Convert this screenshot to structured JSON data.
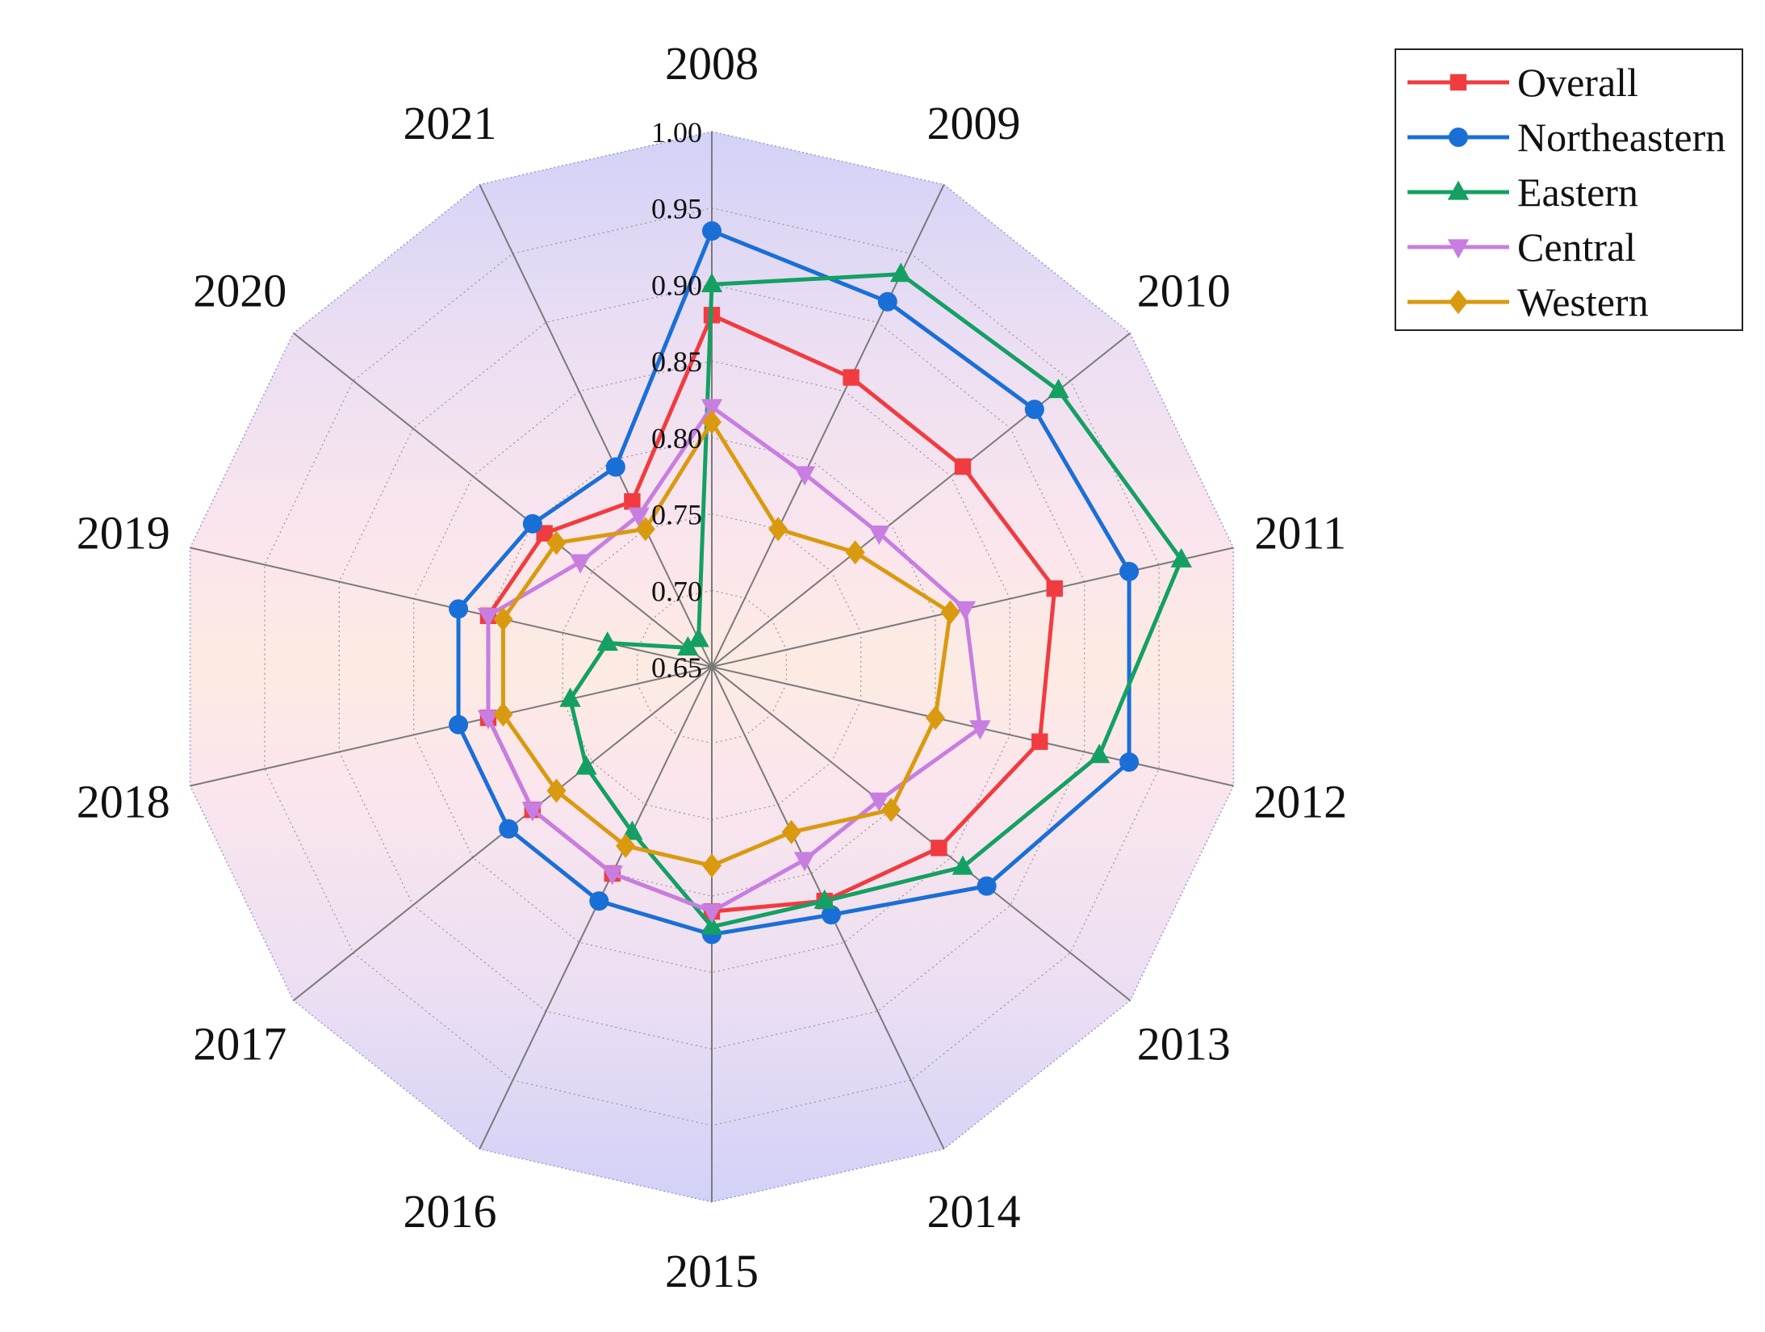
{
  "chart_data": {
    "type": "radar",
    "categories": [
      "2008",
      "2009",
      "2010",
      "2011",
      "2012",
      "2013",
      "2014",
      "2015",
      "2016",
      "2017",
      "2018",
      "2019",
      "2020",
      "2021"
    ],
    "r_ticks": [
      "0.65",
      "0.70",
      "0.75",
      "0.80",
      "0.85",
      "0.90",
      "0.95",
      "1.00"
    ],
    "rlim": [
      0.65,
      1.0
    ],
    "legend_position": "top-right",
    "series": [
      {
        "name": "Overall",
        "color": "#f03c40",
        "marker": "square",
        "values": [
          0.88,
          0.86,
          0.86,
          0.88,
          0.87,
          0.84,
          0.82,
          0.81,
          0.8,
          0.8,
          0.8,
          0.8,
          0.79,
          0.77
        ]
      },
      {
        "name": "Northeastern",
        "color": "#1a6fd6",
        "marker": "circle",
        "values": [
          0.935,
          0.915,
          0.92,
          0.93,
          0.93,
          0.88,
          0.83,
          0.825,
          0.82,
          0.82,
          0.82,
          0.82,
          0.8,
          0.795
        ]
      },
      {
        "name": "Eastern",
        "color": "#14a062",
        "marker": "triangle-up",
        "values": [
          0.9,
          0.935,
          0.94,
          0.965,
          0.91,
          0.86,
          0.82,
          0.82,
          0.77,
          0.755,
          0.745,
          0.72,
          0.67,
          0.67
        ]
      },
      {
        "name": "Central",
        "color": "#c77ee0",
        "marker": "triangle-down",
        "values": [
          0.82,
          0.79,
          0.79,
          0.82,
          0.83,
          0.79,
          0.79,
          0.81,
          0.8,
          0.8,
          0.8,
          0.8,
          0.76,
          0.76
        ]
      },
      {
        "name": "Western",
        "color": "#d99a10",
        "marker": "diamond",
        "values": [
          0.81,
          0.75,
          0.77,
          0.81,
          0.8,
          0.8,
          0.77,
          0.78,
          0.78,
          0.78,
          0.79,
          0.79,
          0.78,
          0.75
        ]
      }
    ]
  }
}
